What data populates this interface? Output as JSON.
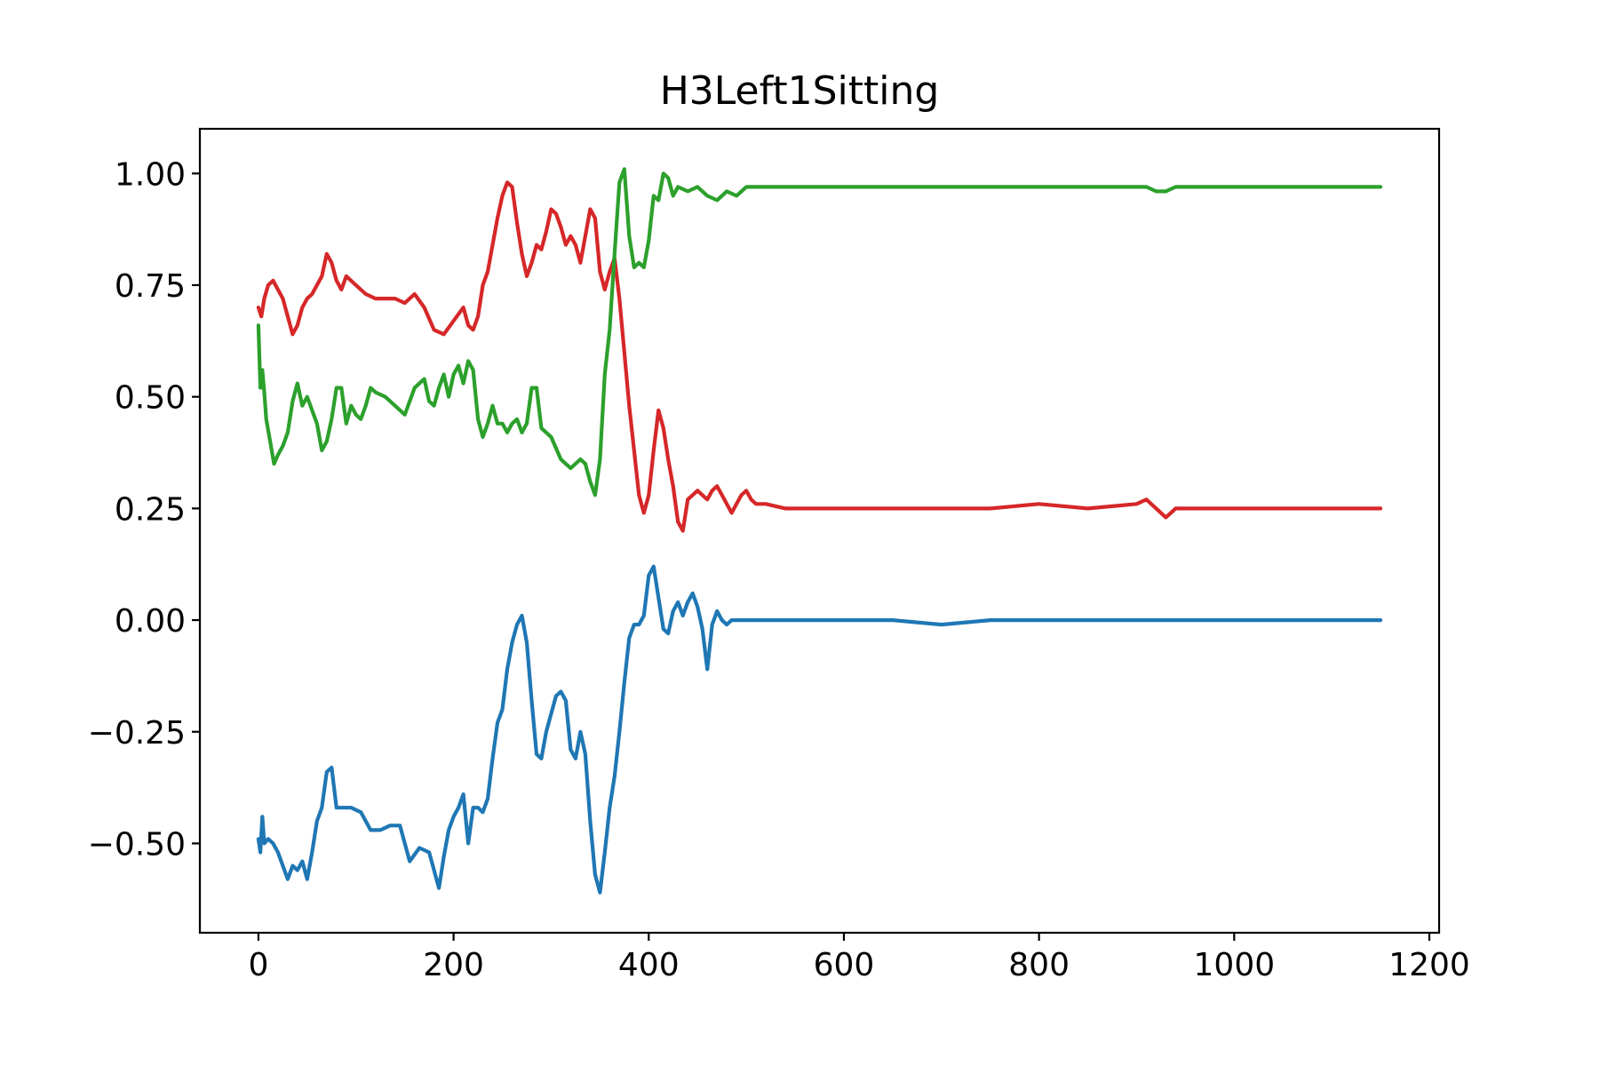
{
  "chart_data": {
    "type": "line",
    "title": "H3Left1Sitting",
    "xlabel": "",
    "ylabel": "",
    "xlim": [
      -60,
      1210
    ],
    "ylim": [
      -0.7,
      1.1
    ],
    "xticks": [
      0,
      200,
      400,
      600,
      800,
      1000,
      1200
    ],
    "xtick_labels": [
      "0",
      "200",
      "400",
      "600",
      "800",
      "1000",
      "1200"
    ],
    "yticks": [
      -0.5,
      -0.25,
      0.0,
      0.25,
      0.5,
      0.75,
      1.0
    ],
    "ytick_labels": [
      "−0.50",
      "−0.25",
      "0.00",
      "0.25",
      "0.50",
      "0.75",
      "1.00"
    ],
    "grid": false,
    "series": [
      {
        "color": "#1f77b4",
        "x": [
          0,
          2,
          4,
          6,
          10,
          15,
          20,
          25,
          30,
          35,
          40,
          45,
          50,
          55,
          60,
          65,
          70,
          75,
          80,
          85,
          95,
          105,
          115,
          125,
          135,
          145,
          155,
          165,
          175,
          185,
          190,
          195,
          200,
          205,
          210,
          215,
          220,
          225,
          230,
          235,
          240,
          245,
          250,
          255,
          260,
          265,
          270,
          275,
          280,
          285,
          290,
          295,
          300,
          305,
          310,
          315,
          320,
          325,
          330,
          335,
          340,
          345,
          350,
          355,
          360,
          365,
          370,
          375,
          380,
          385,
          390,
          395,
          400,
          405,
          410,
          415,
          420,
          425,
          430,
          435,
          440,
          445,
          450,
          455,
          460,
          465,
          470,
          475,
          480,
          485,
          490,
          495,
          500,
          505,
          510,
          520,
          540,
          560,
          600,
          650,
          700,
          750,
          800,
          850,
          900,
          950,
          1000,
          1050,
          1100,
          1150
        ],
        "y": [
          -0.49,
          -0.52,
          -0.44,
          -0.5,
          -0.49,
          -0.5,
          -0.52,
          -0.55,
          -0.58,
          -0.55,
          -0.56,
          -0.54,
          -0.58,
          -0.52,
          -0.45,
          -0.42,
          -0.34,
          -0.33,
          -0.42,
          -0.42,
          -0.42,
          -0.43,
          -0.47,
          -0.47,
          -0.46,
          -0.46,
          -0.54,
          -0.51,
          -0.52,
          -0.6,
          -0.53,
          -0.47,
          -0.44,
          -0.42,
          -0.39,
          -0.5,
          -0.42,
          -0.42,
          -0.43,
          -0.4,
          -0.31,
          -0.23,
          -0.2,
          -0.11,
          -0.05,
          -0.01,
          0.01,
          -0.05,
          -0.18,
          -0.3,
          -0.31,
          -0.25,
          -0.21,
          -0.17,
          -0.16,
          -0.18,
          -0.29,
          -0.31,
          -0.25,
          -0.3,
          -0.45,
          -0.57,
          -0.61,
          -0.52,
          -0.42,
          -0.35,
          -0.25,
          -0.14,
          -0.04,
          -0.01,
          -0.01,
          0.01,
          0.1,
          0.12,
          0.05,
          -0.02,
          -0.03,
          0.02,
          0.04,
          0.01,
          0.04,
          0.06,
          0.03,
          -0.02,
          -0.11,
          -0.01,
          0.02,
          0.0,
          -0.01,
          0.0,
          0.0,
          0.0,
          0.0,
          0.0,
          0.0,
          0.0,
          0.0,
          0.0,
          0.0,
          0.0,
          -0.01,
          0.0,
          0.0,
          0.0,
          0.0,
          0.0,
          0.0,
          0.0,
          0.0,
          0.0
        ]
      },
      {
        "color": "#d62728",
        "x": [
          0,
          3,
          6,
          10,
          15,
          20,
          25,
          30,
          35,
          40,
          45,
          50,
          55,
          60,
          65,
          70,
          75,
          80,
          85,
          90,
          100,
          110,
          120,
          130,
          140,
          150,
          160,
          170,
          180,
          190,
          200,
          210,
          215,
          220,
          225,
          230,
          235,
          240,
          245,
          250,
          255,
          260,
          265,
          270,
          275,
          280,
          285,
          290,
          295,
          300,
          305,
          310,
          315,
          320,
          325,
          330,
          335,
          340,
          345,
          350,
          355,
          360,
          365,
          370,
          375,
          380,
          385,
          390,
          395,
          400,
          405,
          410,
          415,
          420,
          425,
          430,
          435,
          440,
          445,
          450,
          455,
          460,
          465,
          470,
          475,
          480,
          485,
          490,
          495,
          500,
          505,
          510,
          520,
          540,
          560,
          600,
          650,
          700,
          750,
          800,
          850,
          900,
          910,
          920,
          930,
          940,
          950,
          1000,
          1050,
          1100,
          1150
        ],
        "y": [
          0.7,
          0.68,
          0.72,
          0.75,
          0.76,
          0.74,
          0.72,
          0.68,
          0.64,
          0.66,
          0.7,
          0.72,
          0.73,
          0.75,
          0.77,
          0.82,
          0.8,
          0.76,
          0.74,
          0.77,
          0.75,
          0.73,
          0.72,
          0.72,
          0.72,
          0.71,
          0.73,
          0.7,
          0.65,
          0.64,
          0.67,
          0.7,
          0.66,
          0.65,
          0.68,
          0.75,
          0.78,
          0.84,
          0.9,
          0.95,
          0.98,
          0.97,
          0.89,
          0.82,
          0.77,
          0.8,
          0.84,
          0.83,
          0.87,
          0.92,
          0.91,
          0.88,
          0.84,
          0.86,
          0.84,
          0.8,
          0.86,
          0.92,
          0.9,
          0.78,
          0.74,
          0.78,
          0.81,
          0.72,
          0.6,
          0.48,
          0.38,
          0.28,
          0.24,
          0.28,
          0.38,
          0.47,
          0.43,
          0.36,
          0.3,
          0.22,
          0.2,
          0.27,
          0.28,
          0.29,
          0.28,
          0.27,
          0.29,
          0.3,
          0.28,
          0.26,
          0.24,
          0.26,
          0.28,
          0.29,
          0.27,
          0.26,
          0.26,
          0.25,
          0.25,
          0.25,
          0.25,
          0.25,
          0.25,
          0.26,
          0.25,
          0.26,
          0.27,
          0.25,
          0.23,
          0.25,
          0.25,
          0.25,
          0.25,
          0.25,
          0.25
        ]
      },
      {
        "color": "#2ca02c",
        "x": [
          0,
          2,
          4,
          6,
          8,
          12,
          16,
          20,
          25,
          30,
          35,
          40,
          45,
          50,
          55,
          60,
          65,
          70,
          75,
          80,
          85,
          90,
          95,
          100,
          105,
          110,
          115,
          120,
          130,
          140,
          150,
          160,
          170,
          175,
          180,
          185,
          190,
          195,
          200,
          205,
          210,
          215,
          220,
          225,
          230,
          235,
          240,
          245,
          250,
          255,
          260,
          265,
          270,
          275,
          280,
          285,
          290,
          295,
          300,
          310,
          320,
          330,
          335,
          340,
          345,
          350,
          355,
          360,
          365,
          370,
          375,
          380,
          385,
          390,
          395,
          400,
          405,
          410,
          415,
          420,
          425,
          430,
          440,
          450,
          460,
          470,
          480,
          490,
          500,
          510,
          520,
          540,
          560,
          600,
          650,
          700,
          750,
          800,
          850,
          900,
          910,
          920,
          930,
          940,
          950,
          1000,
          1050,
          1100,
          1150
        ],
        "y": [
          0.66,
          0.52,
          0.56,
          0.51,
          0.45,
          0.4,
          0.35,
          0.37,
          0.39,
          0.42,
          0.49,
          0.53,
          0.48,
          0.5,
          0.47,
          0.44,
          0.38,
          0.4,
          0.45,
          0.52,
          0.52,
          0.44,
          0.48,
          0.46,
          0.45,
          0.48,
          0.52,
          0.51,
          0.5,
          0.48,
          0.46,
          0.52,
          0.54,
          0.49,
          0.48,
          0.52,
          0.55,
          0.5,
          0.55,
          0.57,
          0.53,
          0.58,
          0.56,
          0.45,
          0.41,
          0.44,
          0.48,
          0.44,
          0.44,
          0.42,
          0.44,
          0.45,
          0.42,
          0.44,
          0.52,
          0.52,
          0.43,
          0.42,
          0.41,
          0.36,
          0.34,
          0.36,
          0.35,
          0.31,
          0.28,
          0.36,
          0.55,
          0.65,
          0.82,
          0.98,
          1.01,
          0.86,
          0.79,
          0.8,
          0.79,
          0.85,
          0.95,
          0.94,
          1.0,
          0.99,
          0.95,
          0.97,
          0.96,
          0.97,
          0.95,
          0.94,
          0.96,
          0.95,
          0.97,
          0.97,
          0.97,
          0.97,
          0.97,
          0.97,
          0.97,
          0.97,
          0.97,
          0.97,
          0.97,
          0.97,
          0.97,
          0.96,
          0.96,
          0.97,
          0.97,
          0.97,
          0.97,
          0.97,
          0.97
        ]
      }
    ]
  }
}
